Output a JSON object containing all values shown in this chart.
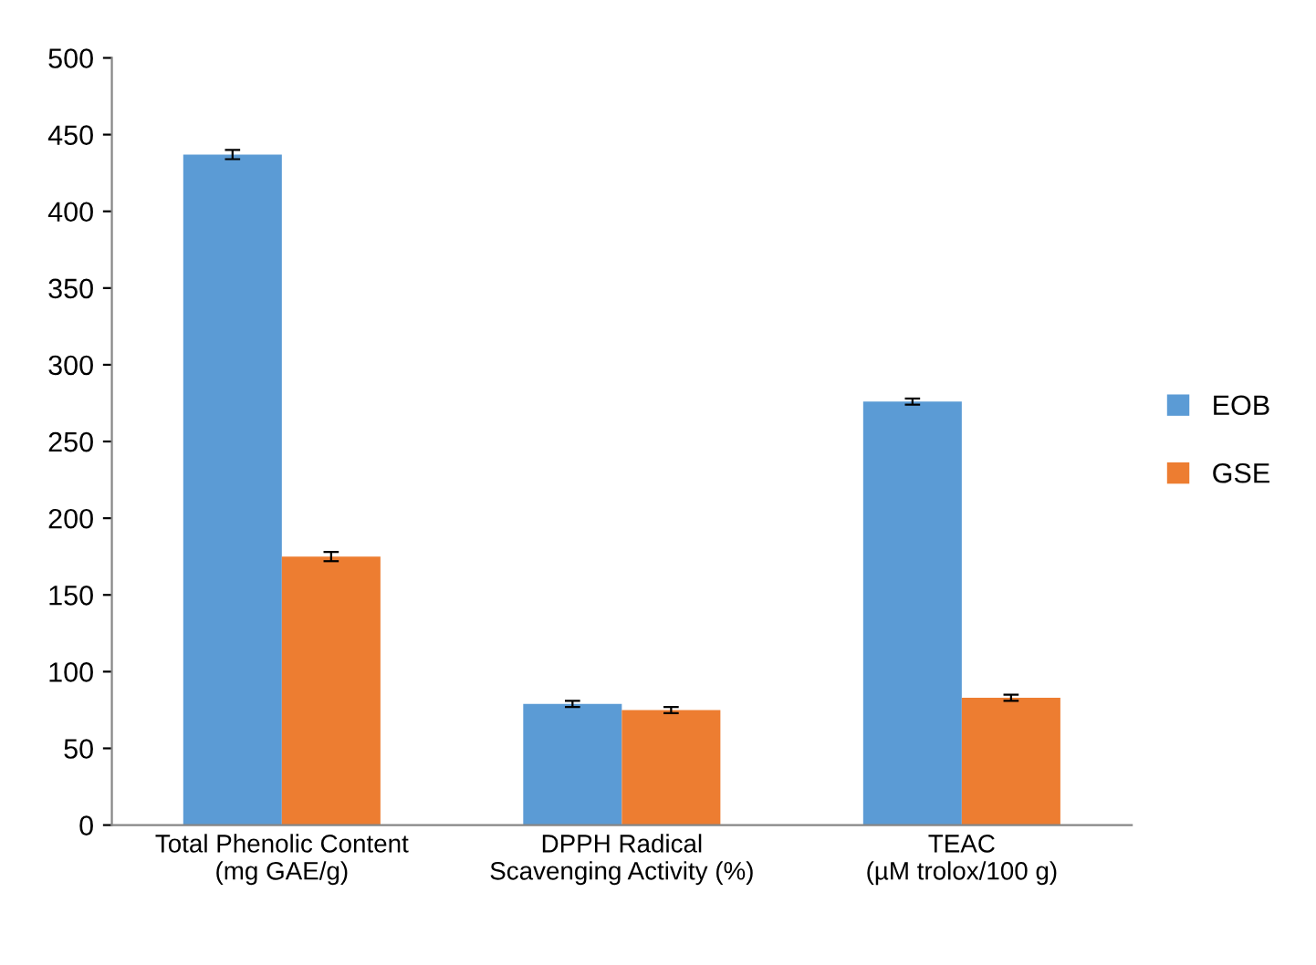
{
  "chart_data": {
    "type": "bar",
    "categories": [
      "Total Phenolic Content\n(mg GAE/g)",
      "DPPH Radical\nScavenging Activity (%)",
      "TEAC\n(µM trolox/100 g)"
    ],
    "series": [
      {
        "name": "EOB",
        "color": "#5b9bd5",
        "values": [
          437,
          79,
          276
        ],
        "errors": [
          3,
          2,
          2
        ]
      },
      {
        "name": "GSE",
        "color": "#ed7d31",
        "values": [
          175,
          75,
          83
        ],
        "errors": [
          3,
          2,
          2
        ]
      }
    ],
    "ylim": [
      0,
      500
    ],
    "yticks": [
      0,
      50,
      100,
      150,
      200,
      250,
      300,
      350,
      400,
      450,
      500
    ],
    "grid": false,
    "legend": "right"
  }
}
